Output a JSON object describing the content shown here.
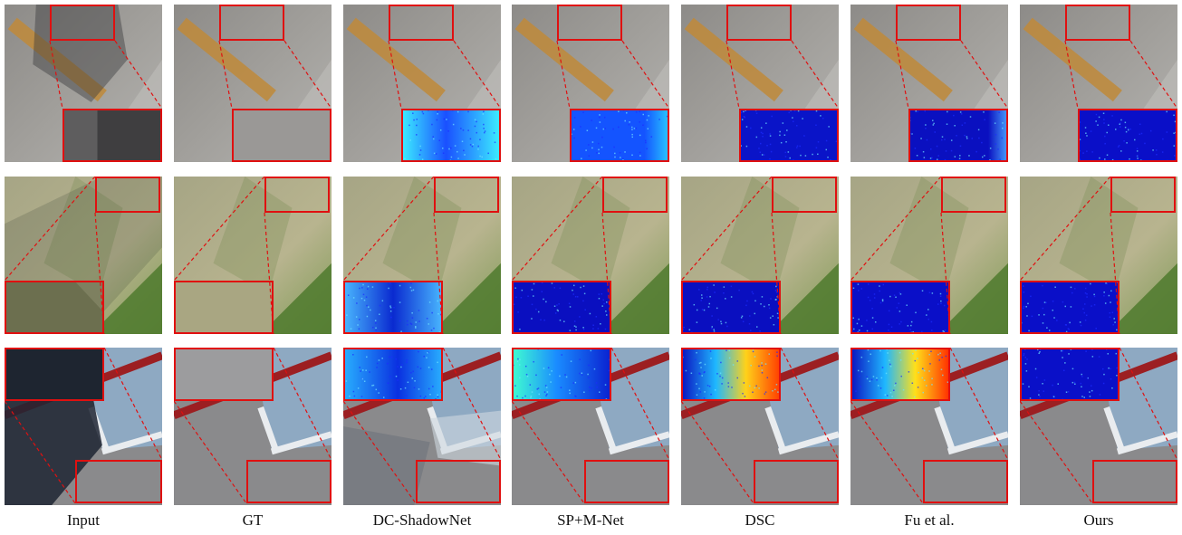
{
  "figure": {
    "columns": [
      {
        "key": "input",
        "label": "Input",
        "inset": "photo"
      },
      {
        "key": "gt",
        "label": "GT",
        "inset": "photo"
      },
      {
        "key": "dcshadownet",
        "label": "DC-ShadowNet",
        "inset": "error"
      },
      {
        "key": "spmnet",
        "label": "SP+M-Net",
        "inset": "error"
      },
      {
        "key": "dsc",
        "label": "DSC",
        "inset": "error"
      },
      {
        "key": "fu",
        "label": "Fu et al.",
        "inset": "error"
      },
      {
        "key": "ours",
        "label": "Ours",
        "inset": "error"
      }
    ],
    "rows": [
      {
        "key": "concrete-road",
        "scene": "grey concrete with orange painted stripe"
      },
      {
        "key": "grass-field",
        "scene": "green field with diagonal shadow"
      },
      {
        "key": "court-lines",
        "scene": "grey court with red and white lines"
      }
    ],
    "colors": {
      "zoom_box": "#e01010",
      "error_low": "#0a0fc8",
      "error_high": "#ff2a00"
    }
  }
}
